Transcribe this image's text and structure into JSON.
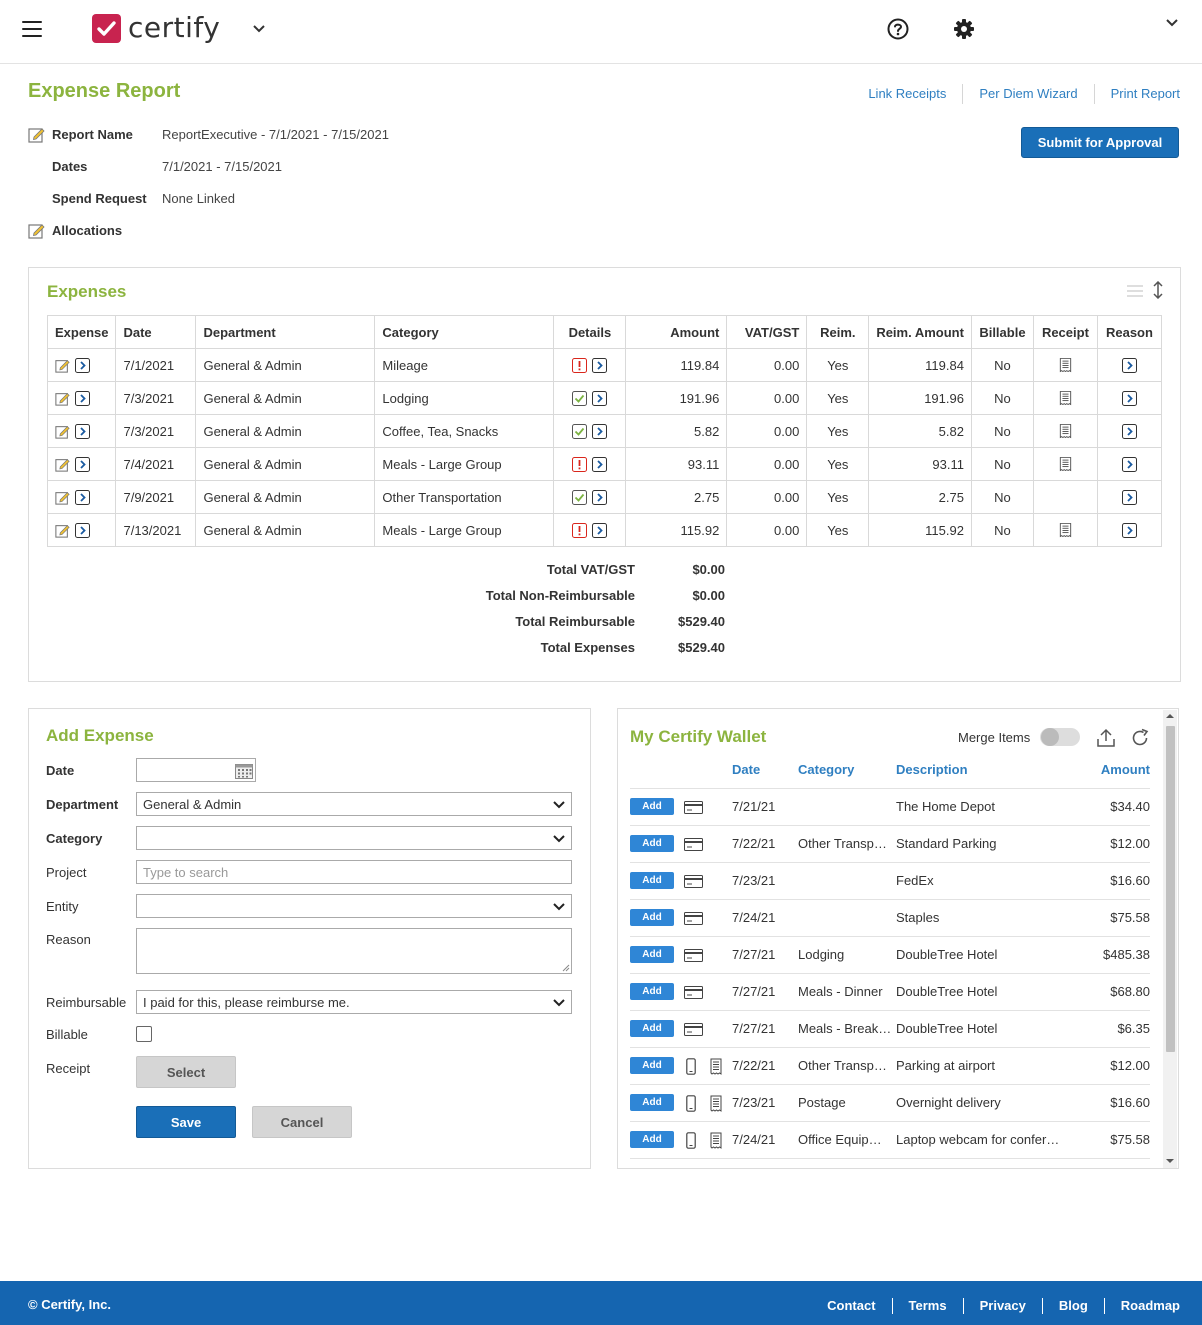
{
  "header": {
    "brand": "certify",
    "menu_icon": "hamburger-icon",
    "help_icon": "help-icon",
    "settings_icon": "gear-icon"
  },
  "report": {
    "title": "Expense Report",
    "links": [
      "Link Receipts",
      "Per Diem Wizard",
      "Print Report"
    ],
    "submit_label": "Submit for Approval",
    "fields": {
      "name_label": "Report Name",
      "name_value": "ReportExecutive - 7/1/2021 - 7/15/2021",
      "dates_label": "Dates",
      "dates_value": "7/1/2021 - 7/15/2021",
      "spend_label": "Spend Request",
      "spend_value": "None Linked",
      "alloc_label": "Allocations"
    }
  },
  "expenses": {
    "title": "Expenses",
    "columns": [
      "Expense",
      "Date",
      "Department",
      "Category",
      "Details",
      "Amount",
      "VAT/GST",
      "Reim.",
      "Reim. Amount",
      "Billable",
      "Receipt",
      "Reason"
    ],
    "rows": [
      {
        "date": "7/1/2021",
        "department": "General & Admin",
        "category": "Mileage",
        "status": "warning",
        "amount": "119.84",
        "vat": "0.00",
        "reim": "Yes",
        "reim_amount": "119.84",
        "billable": "No",
        "receipt": true
      },
      {
        "date": "7/3/2021",
        "department": "General & Admin",
        "category": "Lodging",
        "status": "ok",
        "amount": "191.96",
        "vat": "0.00",
        "reim": "Yes",
        "reim_amount": "191.96",
        "billable": "No",
        "receipt": true
      },
      {
        "date": "7/3/2021",
        "department": "General & Admin",
        "category": "Coffee, Tea, Snacks",
        "status": "ok",
        "amount": "5.82",
        "vat": "0.00",
        "reim": "Yes",
        "reim_amount": "5.82",
        "billable": "No",
        "receipt": true
      },
      {
        "date": "7/4/2021",
        "department": "General & Admin",
        "category": "Meals - Large Group",
        "status": "warning",
        "amount": "93.11",
        "vat": "0.00",
        "reim": "Yes",
        "reim_amount": "93.11",
        "billable": "No",
        "receipt": true
      },
      {
        "date": "7/9/2021",
        "department": "General & Admin",
        "category": "Other Transportation",
        "status": "ok",
        "amount": "2.75",
        "vat": "0.00",
        "reim": "Yes",
        "reim_amount": "2.75",
        "billable": "No",
        "receipt": false
      },
      {
        "date": "7/13/2021",
        "department": "General & Admin",
        "category": "Meals - Large Group",
        "status": "warning",
        "amount": "115.92",
        "vat": "0.00",
        "reim": "Yes",
        "reim_amount": "115.92",
        "billable": "No",
        "receipt": true
      }
    ],
    "totals": [
      {
        "label": "Total VAT/GST",
        "value": "$0.00"
      },
      {
        "label": "Total Non-Reimbursable",
        "value": "$0.00"
      },
      {
        "label": "Total Reimbursable",
        "value": "$529.40"
      },
      {
        "label": "Total Expenses",
        "value": "$529.40"
      }
    ]
  },
  "add_expense": {
    "title": "Add Expense",
    "date_label": "Date",
    "department_label": "Department",
    "department_value": "General & Admin",
    "category_label": "Category",
    "project_label": "Project",
    "project_placeholder": "Type to search",
    "entity_label": "Entity",
    "reason_label": "Reason",
    "reimbursable_label": "Reimbursable",
    "reimbursable_value": "I paid for this, please reimburse me.",
    "billable_label": "Billable",
    "receipt_label": "Receipt",
    "select_label": "Select",
    "save_label": "Save",
    "cancel_label": "Cancel"
  },
  "wallet": {
    "title": "My Certify Wallet",
    "merge_label": "Merge Items",
    "columns": [
      "Date",
      "Category",
      "Description",
      "Amount"
    ],
    "add_label": "Add",
    "items": [
      {
        "source": "card",
        "date": "7/21/21",
        "category": "",
        "description": "The Home Depot",
        "amount": "$34.40"
      },
      {
        "source": "card",
        "date": "7/22/21",
        "category": "Other Transp…",
        "description": "Standard Parking",
        "amount": "$12.00"
      },
      {
        "source": "card",
        "date": "7/23/21",
        "category": "",
        "description": "FedEx",
        "amount": "$16.60"
      },
      {
        "source": "card",
        "date": "7/24/21",
        "category": "",
        "description": "Staples",
        "amount": "$75.58"
      },
      {
        "source": "card",
        "date": "7/27/21",
        "category": "Lodging",
        "description": "DoubleTree Hotel",
        "amount": "$485.38"
      },
      {
        "source": "card",
        "date": "7/27/21",
        "category": "Meals - Dinner",
        "description": "DoubleTree Hotel",
        "amount": "$68.80"
      },
      {
        "source": "card",
        "date": "7/27/21",
        "category": "Meals - Break…",
        "description": "DoubleTree Hotel",
        "amount": "$6.35"
      },
      {
        "source": "mobile",
        "date": "7/22/21",
        "category": "Other Transp…",
        "description": "Parking at airport",
        "amount": "$12.00"
      },
      {
        "source": "mobile",
        "date": "7/23/21",
        "category": "Postage",
        "description": "Overnight delivery",
        "amount": "$16.60"
      },
      {
        "source": "mobile",
        "date": "7/24/21",
        "category": "Office Equip…",
        "description": "Laptop webcam for confer…",
        "amount": "$75.58"
      }
    ]
  },
  "footer": {
    "copyright": "© Certify, Inc.",
    "links": [
      "Contact",
      "Terms",
      "Privacy",
      "Blog",
      "Roadmap"
    ]
  },
  "colors": {
    "accent_green": "#8cb43f",
    "link_blue": "#2f7fc1",
    "primary_blue": "#1a6fb8",
    "brand_red": "#c8234f",
    "footer_blue": "#1565b0"
  }
}
